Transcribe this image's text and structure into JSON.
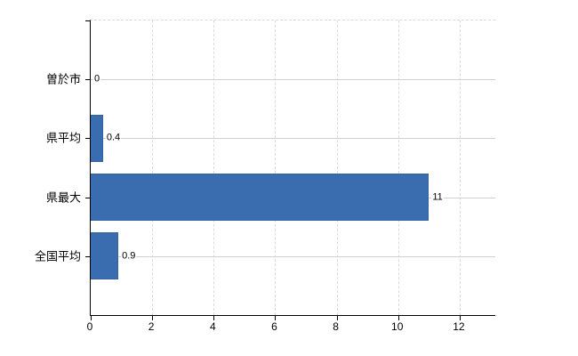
{
  "chart_data": {
    "type": "bar",
    "orientation": "horizontal",
    "title": "",
    "xlabel": "",
    "ylabel": "",
    "categories": [
      "曽於市",
      "県平均",
      "県最大",
      "全国平均"
    ],
    "values": [
      0,
      0.4,
      11,
      0.9
    ],
    "value_labels": [
      "0",
      "0.4",
      "11",
      "0.9"
    ],
    "x_ticks": [
      0,
      2,
      4,
      6,
      8,
      10,
      12
    ],
    "x_tick_labels": [
      "0",
      "2",
      "4",
      "6",
      "8",
      "10",
      "12"
    ],
    "xlim": [
      0,
      13.16
    ],
    "grid": true,
    "legend": "none",
    "colors": {
      "bar": "#3a6cb0",
      "bar_border": "#35629f",
      "grid_horizontal": "#cdd4cd",
      "grid_vertical": "#dadada",
      "axis": "#000000",
      "text": "#000000",
      "background": "#ffffff"
    }
  }
}
